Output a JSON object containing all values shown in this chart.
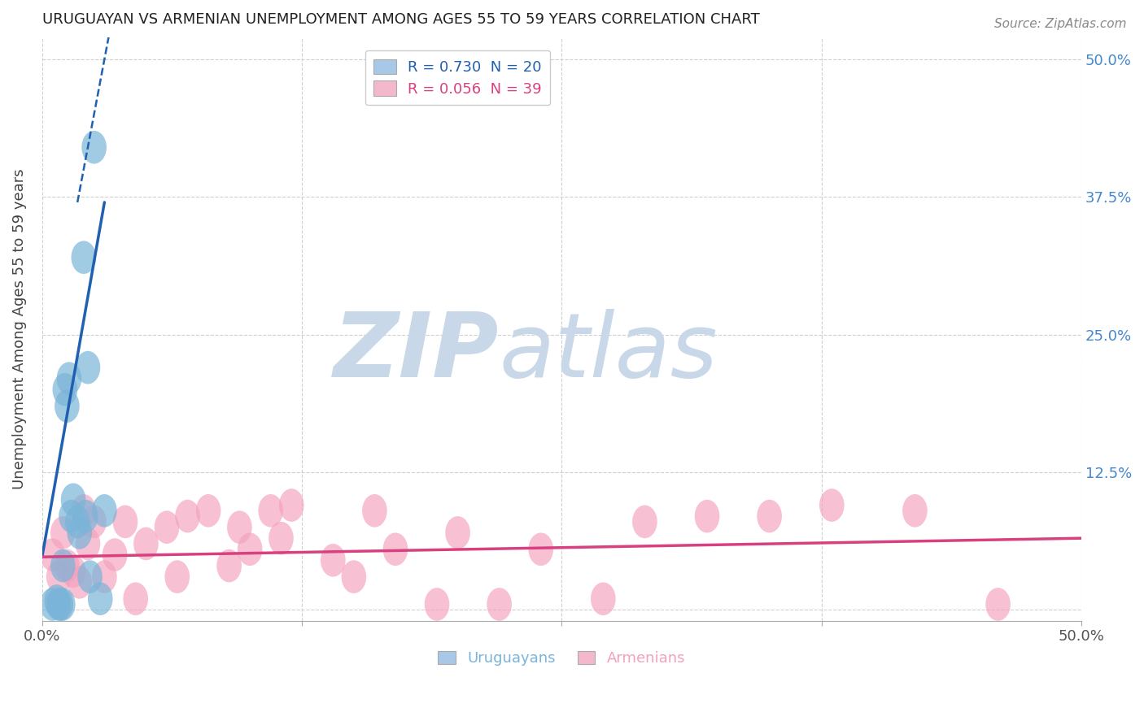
{
  "title": "URUGUAYAN VS ARMENIAN UNEMPLOYMENT AMONG AGES 55 TO 59 YEARS CORRELATION CHART",
  "source": "Source: ZipAtlas.com",
  "ylabel": "Unemployment Among Ages 55 to 59 years",
  "xlim": [
    0.0,
    0.5
  ],
  "ylim": [
    -0.02,
    0.52
  ],
  "plot_ylim": [
    0.0,
    0.52
  ],
  "xticks": [
    0.0,
    0.125,
    0.25,
    0.375,
    0.5
  ],
  "yticks": [
    0.0,
    0.125,
    0.25,
    0.375,
    0.5
  ],
  "xtick_labels_show": [
    "0.0%",
    "",
    "",
    "",
    "50.0%"
  ],
  "ytick_labels_right": [
    "",
    "12.5%",
    "25.0%",
    "37.5%",
    "50.0%"
  ],
  "legend_blue_label": "R = 0.730  N = 20",
  "legend_pink_label": "R = 0.056  N = 39",
  "legend_blue_color": "#a8c8e8",
  "legend_pink_color": "#f4b8cc",
  "blue_scatter_color": "#7ab4d8",
  "pink_scatter_color": "#f4a0bc",
  "blue_line_color": "#2060b0",
  "pink_line_color": "#d84080",
  "watermark_zip_color": "#c8d8e8",
  "watermark_atlas_color": "#c8d8e8",
  "uruguayan_x": [
    0.005,
    0.007,
    0.008,
    0.009,
    0.01,
    0.01,
    0.011,
    0.012,
    0.013,
    0.014,
    0.015,
    0.017,
    0.018,
    0.02,
    0.021,
    0.022,
    0.023,
    0.025,
    0.028,
    0.03
  ],
  "uruguayan_y": [
    0.005,
    0.008,
    0.005,
    0.005,
    0.005,
    0.04,
    0.2,
    0.185,
    0.21,
    0.085,
    0.1,
    0.08,
    0.07,
    0.32,
    0.085,
    0.22,
    0.03,
    0.42,
    0.01,
    0.09
  ],
  "armenian_x": [
    0.005,
    0.008,
    0.01,
    0.012,
    0.015,
    0.018,
    0.02,
    0.022,
    0.025,
    0.03,
    0.035,
    0.04,
    0.045,
    0.05,
    0.06,
    0.065,
    0.07,
    0.08,
    0.09,
    0.095,
    0.1,
    0.11,
    0.115,
    0.12,
    0.14,
    0.15,
    0.16,
    0.17,
    0.19,
    0.2,
    0.22,
    0.24,
    0.27,
    0.29,
    0.32,
    0.35,
    0.38,
    0.42,
    0.46
  ],
  "armenian_y": [
    0.05,
    0.03,
    0.07,
    0.04,
    0.035,
    0.025,
    0.09,
    0.06,
    0.08,
    0.03,
    0.05,
    0.08,
    0.01,
    0.06,
    0.075,
    0.03,
    0.085,
    0.09,
    0.04,
    0.075,
    0.055,
    0.09,
    0.065,
    0.095,
    0.045,
    0.03,
    0.09,
    0.055,
    0.005,
    0.07,
    0.005,
    0.055,
    0.01,
    0.08,
    0.085,
    0.085,
    0.095,
    0.09,
    0.005
  ],
  "blue_trendline_x": [
    0.0,
    0.03
  ],
  "blue_trendline_y": [
    0.048,
    0.37
  ],
  "blue_dashline_x": [
    0.017,
    0.032
  ],
  "blue_dashline_y": [
    0.37,
    0.52
  ],
  "pink_trendline_x": [
    0.0,
    0.5
  ],
  "pink_trendline_y": [
    0.048,
    0.065
  ],
  "bottom_labels": [
    "Uruguayans",
    "Armenians"
  ],
  "background_color": "#ffffff",
  "grid_color": "#d0d0d0"
}
